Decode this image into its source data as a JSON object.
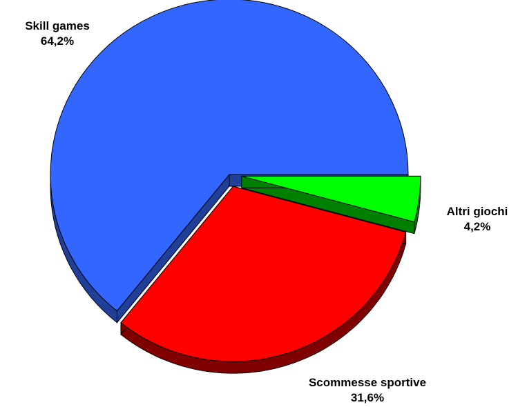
{
  "chart_data": {
    "type": "pie",
    "title": "",
    "slices": [
      {
        "label": "Skill games",
        "value_label": "64,2%",
        "value": 64.2,
        "color": "#3366ff",
        "side_color": "#1f3f99",
        "exploded": false
      },
      {
        "label": "Scommesse sportive",
        "value_label": "31,6%",
        "value": 31.6,
        "color": "#ff0000",
        "side_color": "#800000",
        "exploded": true
      },
      {
        "label": "Altri giochi",
        "value_label": "4,2%",
        "value": 4.2,
        "color": "#00ff00",
        "side_color": "#008000",
        "exploded": true
      }
    ],
    "style": "3d-exploded",
    "legend": "none"
  }
}
